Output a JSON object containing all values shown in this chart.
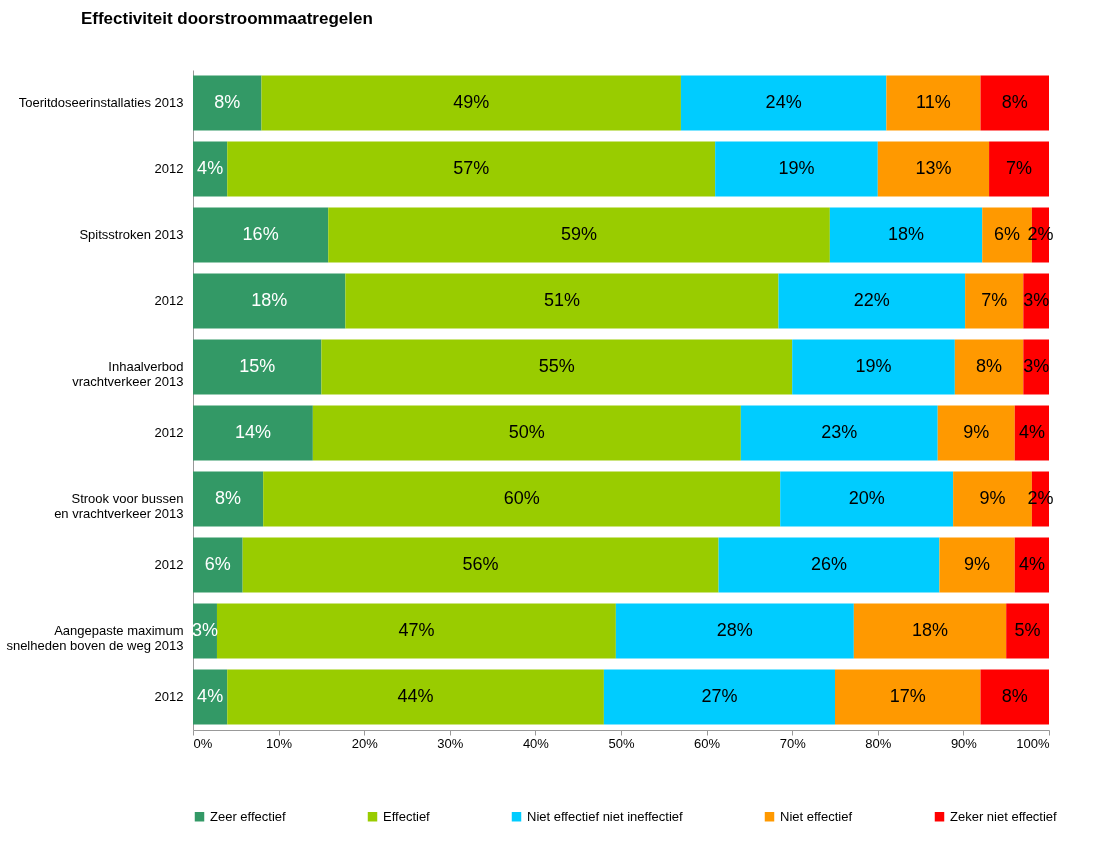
{
  "chart_data": {
    "type": "bar",
    "orientation": "horizontal",
    "stacked": true,
    "title": "Effectiviteit doorstroommaatregelen",
    "categories": [
      "Toeritdoseerinstallaties 2013",
      "2012",
      "Spitsstroken 2013",
      "2012",
      "Inhaalverbod\nvrachtverkeer 2013",
      "2012",
      "Strook voor bussen\nen vrachtverkeer 2013",
      "2012",
      "Aangepaste maximum\nsnelheden boven de weg 2013",
      "2012"
    ],
    "series": [
      {
        "name": "Zeer effectief",
        "color": "#339966",
        "values": [
          8,
          4,
          15.8,
          17.8,
          15,
          14,
          8.2,
          5.8,
          2.8,
          4
        ],
        "value_labels": [
          "8%",
          "4%",
          "16%",
          "18%",
          "15%",
          "14%",
          "8%",
          "6%",
          "3%",
          "4%"
        ]
      },
      {
        "name": "Effectief",
        "color": "#99cc00",
        "values": [
          49,
          57,
          58.6,
          50.6,
          55,
          50,
          60.4,
          55.6,
          46.6,
          44
        ],
        "value_labels": [
          "49%",
          "57%",
          "59%",
          "51%",
          "55%",
          "50%",
          "60%",
          "56%",
          "47%",
          "44%"
        ]
      },
      {
        "name": "Niet effectief niet ineffectief",
        "color": "#00ccff",
        "values": [
          24,
          19,
          17.8,
          21.8,
          19,
          23,
          20.2,
          25.8,
          27.8,
          27
        ],
        "value_labels": [
          "24%",
          "19%",
          "18%",
          "22%",
          "19%",
          "23%",
          "20%",
          "26%",
          "28%",
          "27%"
        ]
      },
      {
        "name": "Niet effectief",
        "color": "#ff9900",
        "values": [
          11,
          13,
          5.8,
          6.8,
          8,
          9,
          9.2,
          8.8,
          17.8,
          17
        ],
        "value_labels": [
          "11%",
          "13%",
          "6%",
          "7%",
          "8%",
          "9%",
          "9%",
          "9%",
          "18%",
          "17%"
        ]
      },
      {
        "name": "Zeker niet effectief",
        "color": "#ff0000",
        "values": [
          8,
          7,
          2,
          3,
          3,
          4,
          2,
          4,
          5,
          8
        ],
        "value_labels": [
          "8%",
          "7%",
          "2%",
          "3%",
          "3%",
          "4%",
          "2%",
          "4%",
          "5%",
          "8%"
        ]
      }
    ],
    "xlim": [
      0,
      100
    ],
    "xticks": [
      {
        "value": 0,
        "label": "0%"
      },
      {
        "value": 10,
        "label": "10%"
      },
      {
        "value": 20,
        "label": "20%"
      },
      {
        "value": 30,
        "label": "30%"
      },
      {
        "value": 40,
        "label": "40%"
      },
      {
        "value": 50,
        "label": "50%"
      },
      {
        "value": 60,
        "label": "60%"
      },
      {
        "value": 70,
        "label": "70%"
      },
      {
        "value": 80,
        "label": "80%"
      },
      {
        "value": 90,
        "label": "90%"
      },
      {
        "value": 100,
        "label": "100%"
      }
    ],
    "grid": false,
    "legend": "bottom"
  }
}
